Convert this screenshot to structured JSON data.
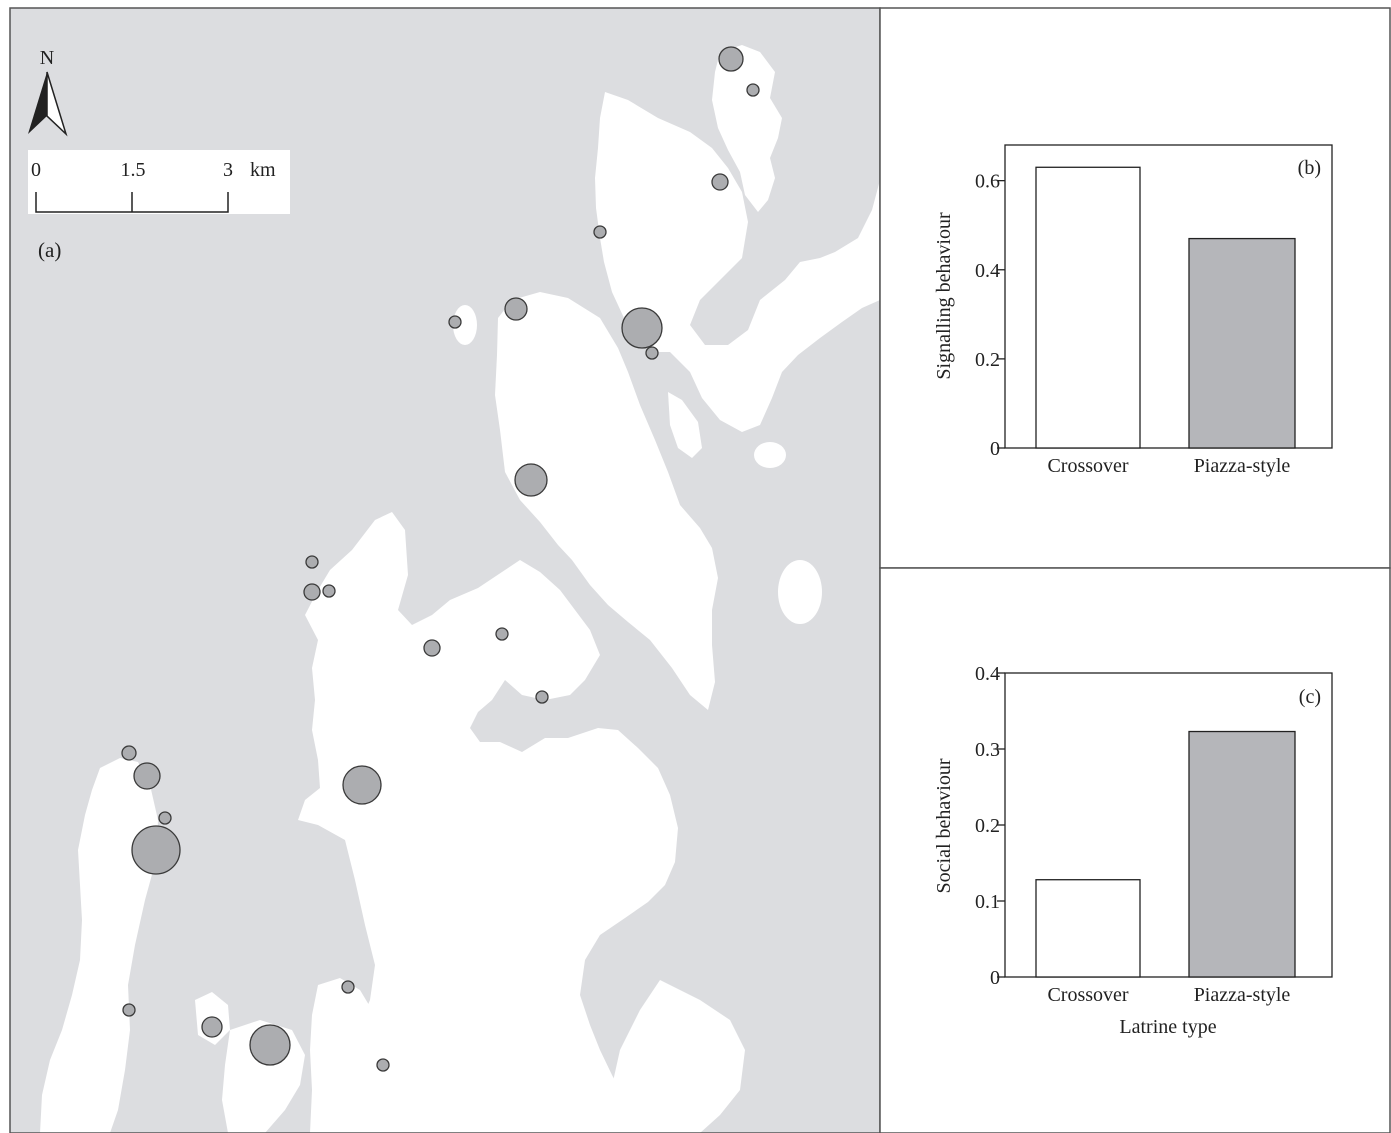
{
  "map": {
    "panel_label": "(a)",
    "north_label": "N",
    "scale": {
      "ticks": [
        "0",
        "1.5",
        "3"
      ],
      "unit": "km"
    },
    "sites": [
      {
        "size": "medium"
      },
      {
        "size": "small"
      },
      {
        "size": "small"
      },
      {
        "size": "small"
      },
      {
        "size": "small"
      },
      {
        "size": "medium"
      },
      {
        "size": "large"
      },
      {
        "size": "small"
      },
      {
        "size": "large"
      },
      {
        "size": "small"
      },
      {
        "size": "small"
      },
      {
        "size": "small"
      },
      {
        "size": "small"
      },
      {
        "size": "small"
      },
      {
        "size": "small"
      },
      {
        "size": "small"
      },
      {
        "size": "medium"
      },
      {
        "size": "medium"
      },
      {
        "size": "large"
      },
      {
        "size": "large"
      },
      {
        "size": "small"
      },
      {
        "size": "medium"
      },
      {
        "size": "small"
      },
      {
        "size": "large"
      },
      {
        "size": "small"
      }
    ],
    "colors": {
      "water": "#dcdde0",
      "land": "#ffffff",
      "site_fill": "#acadb0",
      "site_stroke": "#3a3a3a"
    }
  },
  "chart_data": [
    {
      "type": "bar",
      "panel_label": "(b)",
      "categories": [
        "Crossover",
        "Piazza-style"
      ],
      "values": [
        0.63,
        0.47
      ],
      "ylabel": "Signalling behaviour",
      "xlabel": "",
      "ylim": [
        0,
        0.68
      ],
      "yticks": [
        "0",
        "0.2",
        "0.4",
        "0.6"
      ],
      "bar_colors": [
        "#ffffff",
        "#b5b6ba"
      ]
    },
    {
      "type": "bar",
      "panel_label": "(c)",
      "categories": [
        "Crossover",
        "Piazza-style"
      ],
      "values": [
        0.128,
        0.323
      ],
      "ylabel": "Social behaviour",
      "xlabel": "Latrine type",
      "ylim": [
        0,
        0.4
      ],
      "yticks": [
        "0",
        "0.1",
        "0.2",
        "0.3",
        "0.4"
      ],
      "bar_colors": [
        "#ffffff",
        "#b5b6ba"
      ]
    }
  ]
}
